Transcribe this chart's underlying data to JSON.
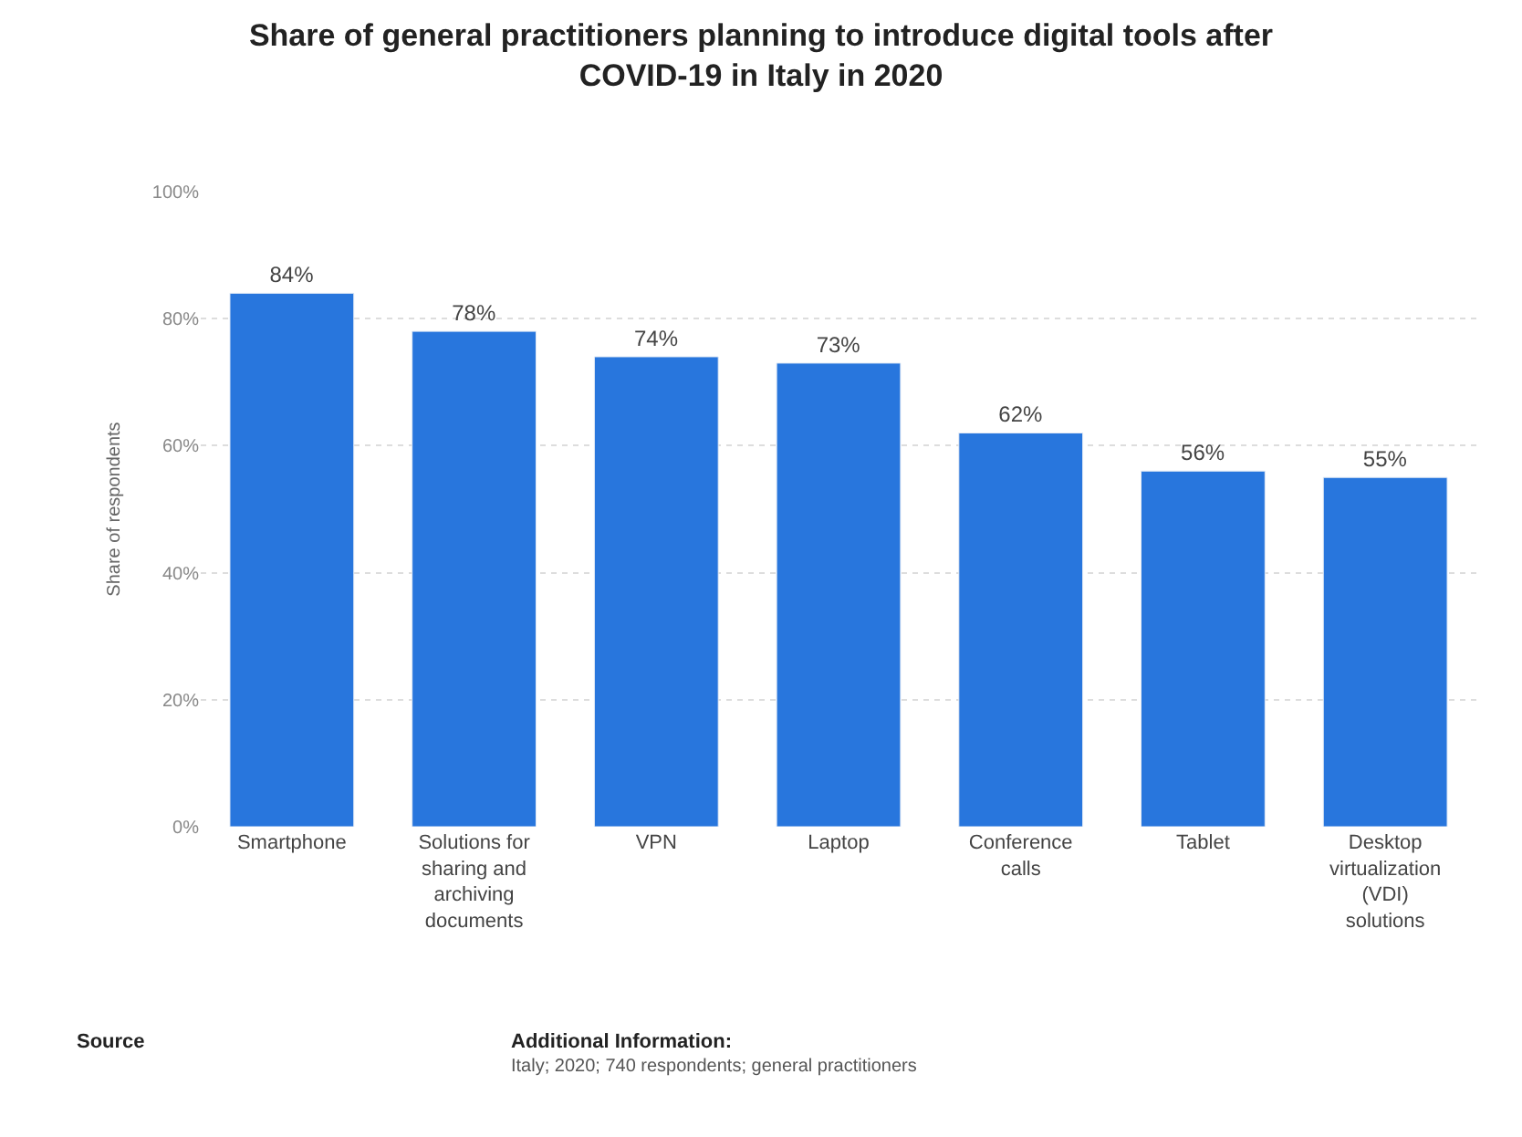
{
  "chart_data": {
    "type": "bar",
    "title": "Share of general practitioners planning to introduce digital tools after COVID-19 in Italy in 2020",
    "ylabel": "Share of respondents",
    "categories": [
      "Smartphone",
      "Solutions for sharing and archiving documents",
      "VPN",
      "Laptop",
      "Conference calls",
      "Tablet",
      "Desktop virtualization (VDI) solutions"
    ],
    "values": [
      84,
      78,
      74,
      73,
      62,
      56,
      55
    ],
    "value_labels": [
      "84%",
      "78%",
      "74%",
      "73%",
      "62%",
      "56%",
      "55%"
    ],
    "color": "#2876dd",
    "ylim": [
      0,
      100
    ],
    "yticks": [
      {
        "value": 0,
        "label": "0%"
      },
      {
        "value": 20,
        "label": "20%"
      },
      {
        "value": 40,
        "label": "40%"
      },
      {
        "value": 60,
        "label": "60%"
      },
      {
        "value": 80,
        "label": "80%"
      },
      {
        "value": 100,
        "label": "100%"
      }
    ],
    "grid": "y",
    "legend": false,
    "annotations": [
      "Source",
      "Additional Information:",
      "Italy; 2020; 740 respondents; general practitioners"
    ]
  }
}
